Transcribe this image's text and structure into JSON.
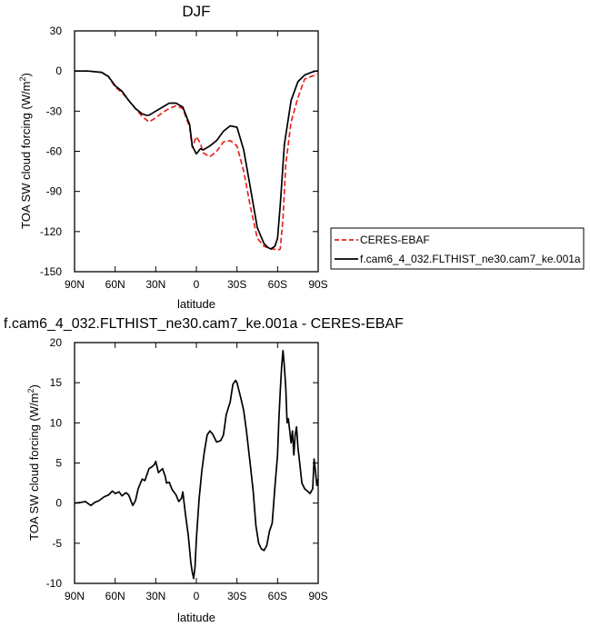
{
  "chart_data": [
    {
      "type": "line",
      "title": "DJF",
      "xlabel": "latitude",
      "ylabel": "TOA SW cloud forcing (W/m",
      "ylabel_sup": "2",
      "ylabel_end": ")",
      "xlim": [
        90,
        -90
      ],
      "ylim": [
        -150,
        30
      ],
      "xticks": [
        90,
        60,
        30,
        0,
        -30,
        -60,
        -90
      ],
      "xtick_labels": [
        "90N",
        "60N",
        "30N",
        "0",
        "30S",
        "60S",
        "90S"
      ],
      "yticks": [
        30,
        0,
        -30,
        -60,
        -90,
        -120,
        -150
      ],
      "ytick_labels": [
        "30",
        "0",
        "-30",
        "-60",
        "-90",
        "-120",
        "-150"
      ],
      "legend_position": "right",
      "series": [
        {
          "name": "CERES-EBAF",
          "color": "#e8241d",
          "style": "dashed",
          "x": [
            90,
            80,
            70,
            65,
            60,
            55,
            50,
            45,
            40,
            35,
            30,
            25,
            20,
            15,
            10,
            5,
            3,
            0,
            -3,
            -5,
            -8,
            -10,
            -15,
            -20,
            -25,
            -30,
            -35,
            -40,
            -45,
            -50,
            -55,
            -57,
            -60,
            -62,
            -64,
            -66,
            -70,
            -75,
            -80,
            -85,
            -88,
            -90
          ],
          "y": [
            0,
            0,
            -1,
            -4,
            -12,
            -16,
            -22,
            -28,
            -34,
            -38,
            -35,
            -31,
            -28,
            -26,
            -28,
            -42,
            -57,
            -49,
            -54,
            -61,
            -63,
            -64,
            -60,
            -53,
            -52,
            -56,
            -75,
            -102,
            -125,
            -131,
            -133,
            -133,
            -134,
            -133,
            -110,
            -70,
            -38,
            -20,
            -6,
            -4,
            -3,
            -2
          ]
        },
        {
          "name": "f.cam6_4_032.FLTHIST_ne30.cam7_ke.001a",
          "color": "#000000",
          "style": "solid",
          "x": [
            90,
            80,
            70,
            65,
            60,
            55,
            50,
            45,
            40,
            37,
            35,
            30,
            25,
            20,
            15,
            10,
            5,
            3,
            0,
            -3,
            -5,
            -10,
            -15,
            -20,
            -25,
            -30,
            -35,
            -40,
            -45,
            -50,
            -53,
            -55,
            -58,
            -60,
            -62,
            -65,
            -70,
            -75,
            -80,
            -85,
            -88,
            -90
          ],
          "y": [
            0,
            0,
            -1,
            -4,
            -11,
            -15,
            -22,
            -28,
            -32,
            -33,
            -33,
            -30,
            -27,
            -24,
            -24,
            -27,
            -40,
            -56,
            -62,
            -58,
            -59,
            -56,
            -52,
            -45,
            -41,
            -42,
            -59,
            -88,
            -117,
            -129,
            -132,
            -133,
            -131,
            -125,
            -100,
            -55,
            -22,
            -8,
            -3,
            -1,
            0,
            0
          ]
        }
      ]
    },
    {
      "type": "line",
      "title": "f.cam6_4_032.FLTHIST_ne30.cam7_ke.001a - CERES-EBAF",
      "xlabel": "latitude",
      "ylabel": "TOA SW cloud forcing (W/m",
      "ylabel_sup": "2",
      "ylabel_end": ")",
      "xlim": [
        90,
        -90
      ],
      "ylim": [
        -10,
        20
      ],
      "xticks": [
        90,
        60,
        30,
        0,
        -30,
        -60,
        -90
      ],
      "xtick_labels": [
        "90N",
        "60N",
        "30N",
        "0",
        "30S",
        "60S",
        "90S"
      ],
      "yticks": [
        20,
        15,
        10,
        5,
        0,
        -5,
        -10
      ],
      "ytick_labels": [
        "20",
        "15",
        "10",
        "5",
        "0",
        "-5",
        "-10"
      ],
      "series": [
        {
          "color": "#000000",
          "style": "solid",
          "x": [
            90,
            85,
            82,
            78,
            75,
            72,
            68,
            65,
            62,
            60,
            57,
            55,
            52,
            50,
            47,
            45,
            43,
            40,
            38,
            35,
            33,
            31,
            30,
            28,
            25,
            23,
            22,
            20,
            18,
            15,
            13,
            11,
            10,
            8,
            6,
            4,
            3,
            2,
            1,
            0,
            -2,
            -4,
            -6,
            -8,
            -10,
            -12,
            -15,
            -18,
            -20,
            -22,
            -25,
            -27,
            -29,
            -30,
            -33,
            -35,
            -37,
            -40,
            -42,
            -44,
            -46,
            -48,
            -50,
            -52,
            -54,
            -56,
            -58,
            -60,
            -61,
            -62,
            -63,
            -64,
            -65,
            -66,
            -67,
            -68,
            -69,
            -70,
            -71,
            -72,
            -73,
            -74,
            -75,
            -76,
            -78,
            -80,
            -82,
            -84,
            -86,
            -87,
            -88,
            -89,
            -90
          ],
          "y": [
            0,
            0.1,
            0.2,
            -0.3,
            0.1,
            0.3,
            0.8,
            1.0,
            1.5,
            1.2,
            1.4,
            0.9,
            1.3,
            1.0,
            -0.3,
            0.3,
            1.8,
            3.0,
            2.8,
            4.3,
            4.5,
            4.8,
            5.2,
            3.8,
            4.3,
            3.3,
            2.5,
            2.6,
            1.7,
            1.0,
            0.2,
            0.6,
            1.4,
            -1.5,
            -4.0,
            -7.5,
            -8.6,
            -9.4,
            -8.0,
            -4.5,
            0.5,
            4.0,
            6.5,
            8.5,
            9.0,
            8.6,
            7.6,
            7.8,
            8.5,
            11.0,
            12.6,
            14.8,
            15.3,
            15.0,
            13.0,
            11.5,
            9.0,
            4.5,
            1.5,
            -2.8,
            -5.0,
            -5.7,
            -5.9,
            -5.3,
            -3.5,
            -2.5,
            2.0,
            6.0,
            10.5,
            14.0,
            17.0,
            19.0,
            17.0,
            14.5,
            10.0,
            10.5,
            9.0,
            7.5,
            9.0,
            6.0,
            8.5,
            9.5,
            7.0,
            5.5,
            2.5,
            1.8,
            1.5,
            1.2,
            1.8,
            5.5,
            4.0,
            2.2,
            3.0
          ]
        }
      ]
    }
  ]
}
